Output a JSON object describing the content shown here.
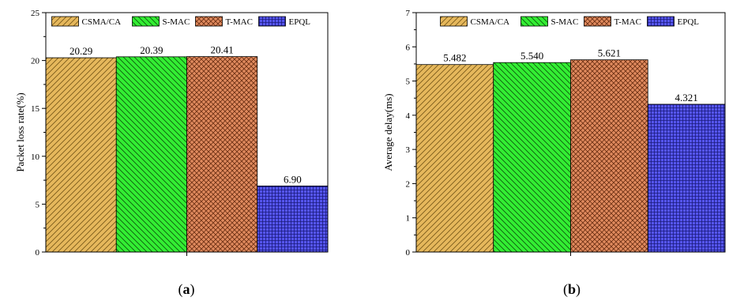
{
  "chart_data": [
    {
      "type": "bar",
      "caption_open": "(",
      "caption_letter": "a",
      "caption_close": ")",
      "ylabel": "Packet loss rate(%)",
      "xlabel": "",
      "ylim": [
        0,
        25
      ],
      "yticks": [
        0,
        5,
        10,
        15,
        20,
        25
      ],
      "categories": [
        "CSMA/CA",
        "S-MAC",
        "T-MAC",
        "EPQL"
      ],
      "values": [
        20.29,
        20.39,
        20.41,
        6.9
      ],
      "value_labels": [
        "20.29",
        "20.39",
        "20.41",
        "6.90"
      ],
      "legend": [
        "CSMA/CA",
        "S-MAC",
        "T-MAC",
        "EPQL"
      ],
      "legend_position": "top"
    },
    {
      "type": "bar",
      "caption_open": "(",
      "caption_letter": "b",
      "caption_close": ")",
      "ylabel": "Average delay(ms)",
      "xlabel": "",
      "ylim": [
        0,
        7
      ],
      "yticks": [
        0,
        1,
        2,
        3,
        4,
        5,
        6,
        7
      ],
      "categories": [
        "CSMA/CA",
        "S-MAC",
        "T-MAC",
        "EPQL"
      ],
      "values": [
        5.482,
        5.54,
        5.621,
        4.321
      ],
      "value_labels": [
        "5.482",
        "5.540",
        "5.621",
        "4.321"
      ],
      "legend": [
        "CSMA/CA",
        "S-MAC",
        "T-MAC",
        "EPQL"
      ],
      "legend_position": "top"
    }
  ],
  "colors": {
    "CSMA/CA": "#e6b85c",
    "S-MAC": "#33ee33",
    "T-MAC": "#e08a5e",
    "EPQL": "#5555ee"
  }
}
